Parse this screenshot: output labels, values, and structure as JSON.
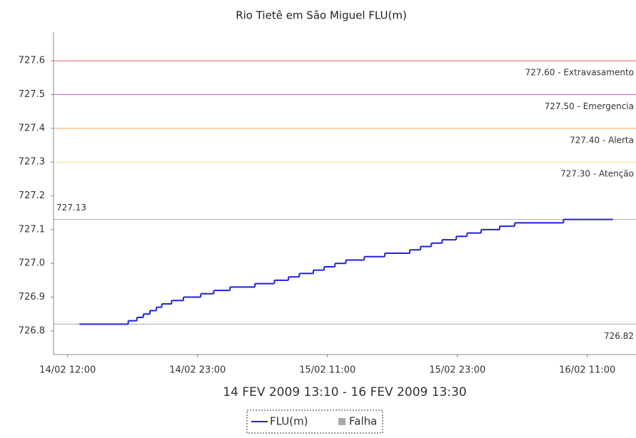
{
  "chart_data": {
    "type": "line",
    "title": "Rio Tietê em São Miguel FLU(m)",
    "x_label": "14 FEV 2009 13:10 - 16 FEV 2009 13:30",
    "xlim": [
      -1.3,
      52.5
    ],
    "xticks": [
      {
        "value": 0,
        "label": "14/02 12:00"
      },
      {
        "value": 12,
        "label": "14/02 23:00"
      },
      {
        "value": 24,
        "label": "15/02 11:00"
      },
      {
        "value": 36,
        "label": "15/02 23:00"
      },
      {
        "value": 48,
        "label": "16/02 11:00"
      }
    ],
    "ylim": [
      726.73,
      727.685
    ],
    "yticks": [
      726.8,
      726.9,
      {
        "value": 727,
        "label": "727.0"
      },
      727.1,
      727.2,
      727.3,
      727.4,
      727.5,
      727.6
    ],
    "x": [
      1.1,
      5.6,
      6.4,
      7.0,
      7.6,
      8.2,
      8.7,
      9.6,
      10.7,
      12.3,
      13.5,
      15.0,
      17.3,
      19.1,
      20.4,
      21.4,
      22.7,
      23.7,
      24.7,
      25.7,
      27.4,
      29.3,
      31.6,
      32.6,
      33.6,
      34.6,
      35.9,
      36.9,
      38.2,
      39.9,
      41.3,
      45.8,
      50.3
    ],
    "series": [
      {
        "name": "FLU(m)",
        "color": "#1f1fe6",
        "values": [
          726.82,
          726.83,
          726.84,
          726.85,
          726.86,
          726.87,
          726.88,
          726.89,
          726.9,
          726.91,
          726.92,
          726.93,
          726.94,
          726.95,
          726.96,
          726.97,
          726.98,
          726.99,
          727.0,
          727.01,
          727.02,
          727.03,
          727.04,
          727.05,
          727.06,
          727.07,
          727.08,
          727.09,
          727.1,
          727.11,
          727.12,
          727.13,
          727.13
        ]
      }
    ],
    "missing_legend": {
      "name": "Falha",
      "color": "#aaaaaa"
    },
    "thresholds": [
      {
        "value": 727.6,
        "label": "727.60 - Extravasamento",
        "color": "#e86060"
      },
      {
        "value": 727.5,
        "label": "727.50 - Emergencia",
        "color": "#e060e0"
      },
      {
        "value": 727.4,
        "label": "727.40 - Alerta",
        "color": "#f0a050"
      },
      {
        "value": 727.3,
        "label": "727.30 - Atenção",
        "color": "#f0e080"
      }
    ],
    "reference_lines": [
      {
        "value": 727.13,
        "label": "727.13",
        "color": "#aaaaaa"
      },
      {
        "value": 726.82,
        "label": "726.82",
        "color": "#aaaaaa"
      }
    ]
  }
}
